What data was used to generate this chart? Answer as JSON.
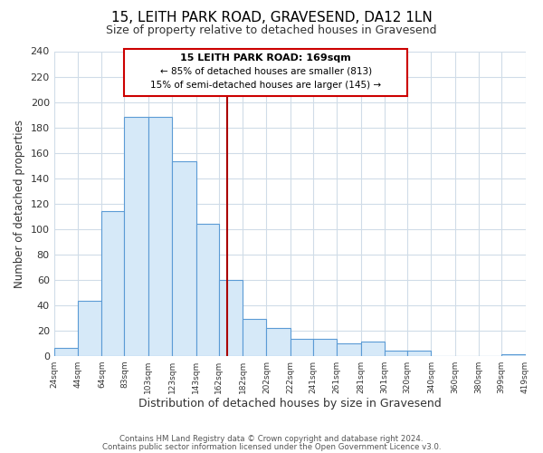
{
  "title": "15, LEITH PARK ROAD, GRAVESEND, DA12 1LN",
  "subtitle": "Size of property relative to detached houses in Gravesend",
  "xlabel": "Distribution of detached houses by size in Gravesend",
  "ylabel": "Number of detached properties",
  "bar_edges": [
    24,
    44,
    64,
    83,
    103,
    123,
    143,
    162,
    182,
    202,
    222,
    241,
    261,
    281,
    301,
    320,
    340,
    360,
    380,
    399,
    419
  ],
  "bar_heights": [
    6,
    43,
    114,
    188,
    188,
    153,
    104,
    60,
    29,
    22,
    13,
    13,
    10,
    11,
    4,
    4,
    0,
    0,
    0,
    1
  ],
  "bar_color": "#d6e9f8",
  "bar_edgecolor": "#5b9bd5",
  "reference_line_x": 169,
  "reference_line_color": "#aa0000",
  "annotation_line1": "15 LEITH PARK ROAD: 169sqm",
  "annotation_line2": "← 85% of detached houses are smaller (813)",
  "annotation_line3": "15% of semi-detached houses are larger (145) →",
  "annotation_box_edgecolor": "#cc0000",
  "annotation_box_facecolor": "#ffffff",
  "ylim": [
    0,
    240
  ],
  "yticks": [
    0,
    20,
    40,
    60,
    80,
    100,
    120,
    140,
    160,
    180,
    200,
    220,
    240
  ],
  "tick_labels": [
    "24sqm",
    "44sqm",
    "64sqm",
    "83sqm",
    "103sqm",
    "123sqm",
    "143sqm",
    "162sqm",
    "182sqm",
    "202sqm",
    "222sqm",
    "241sqm",
    "261sqm",
    "281sqm",
    "301sqm",
    "320sqm",
    "340sqm",
    "360sqm",
    "380sqm",
    "399sqm",
    "419sqm"
  ],
  "tick_positions": [
    24,
    44,
    64,
    83,
    103,
    123,
    143,
    162,
    182,
    202,
    222,
    241,
    261,
    281,
    301,
    320,
    340,
    360,
    380,
    399,
    419
  ],
  "bg_color": "#ffffff",
  "grid_color": "#d0dce8",
  "footer1": "Contains HM Land Registry data © Crown copyright and database right 2024.",
  "footer2": "Contains public sector information licensed under the Open Government Licence v3.0."
}
